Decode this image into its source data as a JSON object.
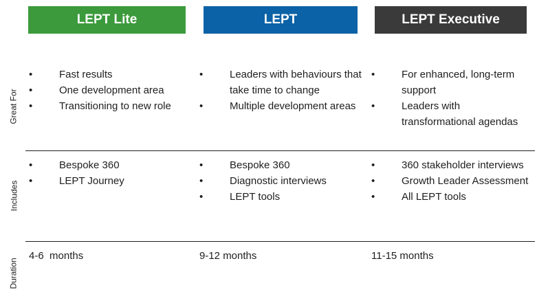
{
  "columns": [
    {
      "title": "LEPT Lite",
      "color": "#3c9a3c"
    },
    {
      "title": "LEPT",
      "color": "#0b62a6"
    },
    {
      "title": "LEPT Executive",
      "color": "#3a3a3a"
    }
  ],
  "rows": [
    {
      "label": "Great For",
      "cells": [
        [
          "Fast results",
          "One development area",
          "Transitioning to new role"
        ],
        [
          "Leaders with behaviours that take time to change",
          "Multiple development areas"
        ],
        [
          "For enhanced, long-term support",
          "Leaders with transformational agendas"
        ]
      ]
    },
    {
      "label": "Includes",
      "cells": [
        [
          "Bespoke 360",
          "LEPT Journey"
        ],
        [
          "Bespoke 360",
          "Diagnostic interviews",
          "LEPT tools"
        ],
        [
          "360 stakeholder interviews",
          "Growth Leader Assessment",
          "All LEPT tools"
        ]
      ]
    },
    {
      "label": "Duration",
      "values": [
        "4-6  months",
        "9-12 months",
        "11-15 months"
      ]
    }
  ]
}
